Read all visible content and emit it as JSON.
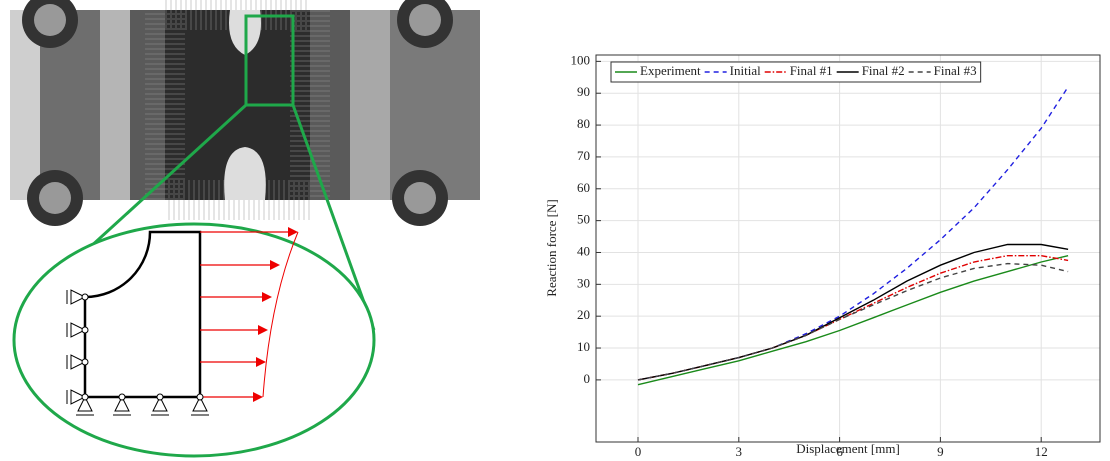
{
  "chart_data": {
    "type": "line",
    "xlabel": "Displacement [mm]",
    "ylabel": "Reaction force [N]",
    "x": [
      0,
      1,
      2,
      3,
      4,
      5,
      6,
      7,
      8,
      9,
      10,
      11,
      12,
      12.8
    ],
    "series": [
      {
        "name": "Experiment",
        "color": "#1a8a1a",
        "style": "solid",
        "values": [
          -1.5,
          1,
          3.5,
          6,
          9,
          12,
          15.5,
          19.5,
          23.5,
          27.5,
          31,
          34,
          37,
          39
        ]
      },
      {
        "name": "Initial",
        "color": "#2020e0",
        "style": "dashed",
        "values": [
          0,
          2,
          4.5,
          7,
          10,
          14.5,
          20,
          27,
          35,
          44,
          54,
          66,
          79,
          92
        ]
      },
      {
        "name": "Final #1",
        "color": "#e00000",
        "style": "dashdot",
        "values": [
          0,
          2,
          4.5,
          7,
          10,
          14,
          19,
          24,
          29,
          33.5,
          37,
          39,
          39,
          37.5
        ]
      },
      {
        "name": "Final #2",
        "color": "#000000",
        "style": "solid",
        "values": [
          0,
          2,
          4.5,
          7,
          10,
          14,
          19.5,
          25,
          31,
          36,
          40,
          42.5,
          42.5,
          41
        ]
      },
      {
        "name": "Final #3",
        "color": "#444444",
        "style": "dashed",
        "values": [
          0,
          2,
          4.5,
          7,
          10,
          14,
          19,
          23.5,
          28,
          32,
          35,
          36.5,
          36,
          34
        ]
      }
    ],
    "xlim": [
      -1.25,
      13.75
    ],
    "xticks": [
      0,
      3,
      6,
      9,
      12
    ],
    "ylim": [
      -19.5,
      102
    ],
    "yticks": [
      0,
      10,
      20,
      30,
      40,
      50,
      60,
      70,
      80,
      90,
      100
    ],
    "grid": true,
    "legend": "top"
  }
}
